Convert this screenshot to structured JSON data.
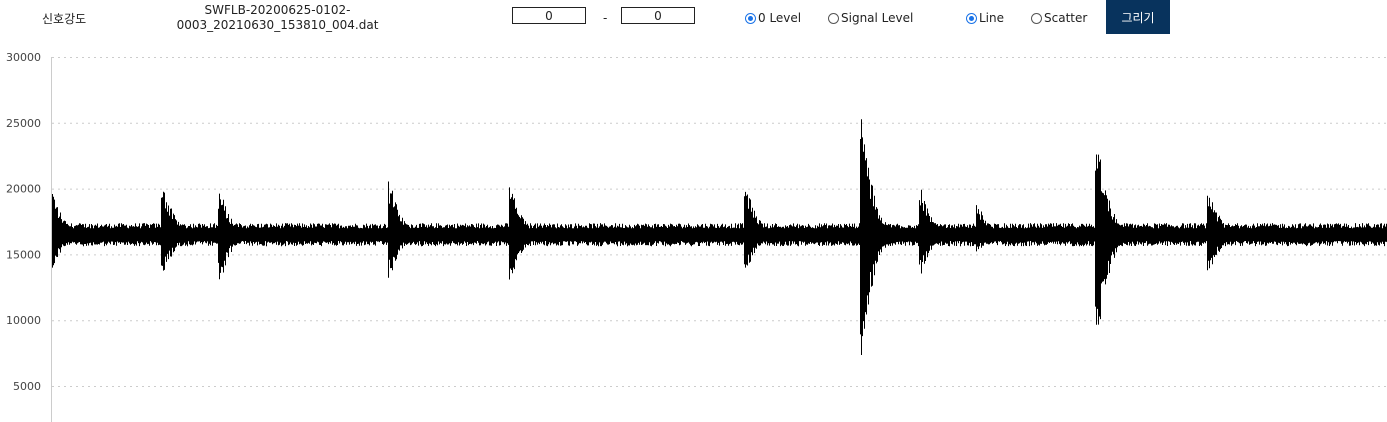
{
  "header": {
    "title": "신호강도",
    "filename_line1": "SWFLB-20200625-0102-",
    "filename_line2": "0003_20210630_153810_004.dat",
    "range_from": "0",
    "range_sep": "-",
    "range_to": "0"
  },
  "options": {
    "level_zero": {
      "label": "0 Level",
      "checked": true
    },
    "level_signal": {
      "label": "Signal Level",
      "checked": false
    },
    "mode_line": {
      "label": "Line",
      "checked": true
    },
    "mode_scatter": {
      "label": "Scatter",
      "checked": false
    }
  },
  "draw_button": {
    "label": "그리기",
    "color": "#08335d"
  },
  "accent_color": "#1a73e8",
  "chart_data": {
    "type": "line",
    "title": "",
    "xlabel": "",
    "ylabel": "",
    "ylim": [
      5000,
      30000
    ],
    "yticks": [
      30000,
      25000,
      20000,
      15000,
      10000,
      5000
    ],
    "grid": true,
    "line_color": "#000000",
    "baseline": 16500,
    "noise_amplitude": 800,
    "bursts": [
      {
        "x": 0.0,
        "max": 20200,
        "min": 13500
      },
      {
        "x": 0.083,
        "max": 20800,
        "min": 12900
      },
      {
        "x": 0.126,
        "max": 20000,
        "min": 12700
      },
      {
        "x": 0.253,
        "max": 20700,
        "min": 13100
      },
      {
        "x": 0.344,
        "max": 20300,
        "min": 12900
      },
      {
        "x": 0.52,
        "max": 20400,
        "min": 13500
      },
      {
        "x": 0.607,
        "max": 25800,
        "min": 6800
      },
      {
        "x": 0.651,
        "max": 20200,
        "min": 13300
      },
      {
        "x": 0.694,
        "max": 18800,
        "min": 15200
      },
      {
        "x": 0.783,
        "max": 24600,
        "min": 7400
      },
      {
        "x": 0.867,
        "max": 20000,
        "min": 13300
      }
    ]
  }
}
